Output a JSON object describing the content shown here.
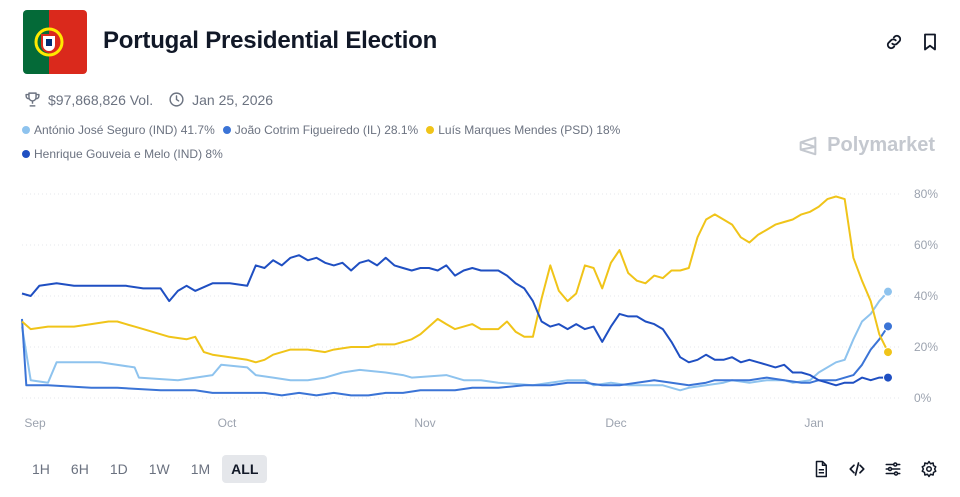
{
  "header": {
    "title": "Portugal Presidential Election",
    "volume": "$97,868,826 Vol.",
    "end_date": "Jan 25, 2026"
  },
  "brand": "Polymarket",
  "ranges": [
    {
      "label": "1H",
      "active": false
    },
    {
      "label": "6H",
      "active": false
    },
    {
      "label": "1D",
      "active": false
    },
    {
      "label": "1W",
      "active": false
    },
    {
      "label": "1M",
      "active": false
    },
    {
      "label": "ALL",
      "active": true
    }
  ],
  "icons": {
    "link": "link-icon",
    "bookmark": "bookmark-icon",
    "trophy": "trophy-icon",
    "clock": "clock-icon",
    "doc": "document-icon",
    "embed": "code-icon",
    "filters": "sliders-icon",
    "settings": "gear-icon"
  },
  "chart_data": {
    "type": "line",
    "x_ticks": [
      "Sep",
      "Oct",
      "Nov",
      "Dec",
      "Jan"
    ],
    "y_ticks": [
      "0%",
      "20%",
      "40%",
      "60%",
      "80%"
    ],
    "ylim": [
      0,
      80
    ],
    "grid": true,
    "legend_position": "top-left",
    "x_domain": [
      0,
      100
    ],
    "series": [
      {
        "name": "António José Seguro (IND)",
        "pct": "41.7%",
        "color": "#8ec3ee",
        "end_value": 41.7,
        "points": [
          [
            0,
            28
          ],
          [
            1,
            7
          ],
          [
            3,
            6
          ],
          [
            4,
            14
          ],
          [
            9,
            14
          ],
          [
            13,
            12
          ],
          [
            13.5,
            8
          ],
          [
            18,
            7
          ],
          [
            22,
            9
          ],
          [
            23,
            13
          ],
          [
            26,
            12
          ],
          [
            27,
            9
          ],
          [
            29,
            8
          ],
          [
            31,
            7
          ],
          [
            33,
            7
          ],
          [
            35,
            8
          ],
          [
            37,
            10
          ],
          [
            39,
            11
          ],
          [
            42,
            10
          ],
          [
            44,
            9
          ],
          [
            45,
            8
          ],
          [
            49,
            9
          ],
          [
            51,
            7
          ],
          [
            53,
            7
          ],
          [
            55,
            6
          ],
          [
            59,
            5
          ],
          [
            61,
            6
          ],
          [
            63,
            7
          ],
          [
            65,
            7
          ],
          [
            66,
            5
          ],
          [
            68,
            6
          ],
          [
            70,
            5
          ],
          [
            72,
            5
          ],
          [
            74,
            5
          ],
          [
            75,
            4
          ],
          [
            76,
            3
          ],
          [
            77,
            4
          ],
          [
            79,
            5
          ],
          [
            81,
            6
          ],
          [
            82,
            7
          ],
          [
            84,
            6
          ],
          [
            86,
            7
          ],
          [
            88,
            7
          ],
          [
            89,
            6
          ],
          [
            91,
            7
          ],
          [
            92,
            10
          ],
          [
            94,
            14
          ],
          [
            95,
            15
          ],
          [
            96,
            23
          ],
          [
            97,
            30
          ],
          [
            98,
            33
          ],
          [
            99,
            38
          ],
          [
            100,
            41.7
          ]
        ]
      },
      {
        "name": "João Cotrim Figueiredo (IL)",
        "pct": "28.1%",
        "color": "#3b74d6",
        "end_value": 28.1,
        "points": [
          [
            0,
            31
          ],
          [
            0.5,
            5
          ],
          [
            3,
            5
          ],
          [
            8,
            4
          ],
          [
            11,
            4
          ],
          [
            16,
            3
          ],
          [
            20,
            3
          ],
          [
            22,
            2
          ],
          [
            25,
            2
          ],
          [
            28,
            2
          ],
          [
            30,
            1
          ],
          [
            32,
            2
          ],
          [
            34,
            1
          ],
          [
            36,
            2
          ],
          [
            38,
            1
          ],
          [
            40,
            1
          ],
          [
            42,
            2
          ],
          [
            44,
            2
          ],
          [
            46,
            3
          ],
          [
            48,
            3
          ],
          [
            50,
            3
          ],
          [
            52,
            4
          ],
          [
            55,
            4
          ],
          [
            58,
            5
          ],
          [
            61,
            5
          ],
          [
            63,
            6
          ],
          [
            65,
            6
          ],
          [
            67,
            5
          ],
          [
            69,
            5
          ],
          [
            71,
            6
          ],
          [
            73,
            7
          ],
          [
            75,
            6
          ],
          [
            77,
            5
          ],
          [
            79,
            6
          ],
          [
            80,
            7
          ],
          [
            82,
            7
          ],
          [
            84,
            7
          ],
          [
            86,
            8
          ],
          [
            88,
            7
          ],
          [
            90,
            6
          ],
          [
            91,
            6
          ],
          [
            92,
            7
          ],
          [
            94,
            7
          ],
          [
            96,
            9
          ],
          [
            97,
            13
          ],
          [
            98,
            19
          ],
          [
            99,
            23
          ],
          [
            100,
            28.1
          ]
        ]
      },
      {
        "name": "Luís Marques Mendes (PSD)",
        "pct": "18%",
        "color": "#f0c419",
        "end_value": 18,
        "points": [
          [
            0,
            30
          ],
          [
            1,
            27
          ],
          [
            3,
            28
          ],
          [
            6,
            28
          ],
          [
            8,
            29
          ],
          [
            10,
            30
          ],
          [
            11,
            30
          ],
          [
            12,
            29
          ],
          [
            13,
            28
          ],
          [
            14,
            27
          ],
          [
            17,
            24
          ],
          [
            19,
            23
          ],
          [
            20,
            24
          ],
          [
            21,
            18
          ],
          [
            22,
            17
          ],
          [
            24,
            16
          ],
          [
            26,
            15
          ],
          [
            27,
            14
          ],
          [
            28,
            15
          ],
          [
            29,
            17
          ],
          [
            31,
            19
          ],
          [
            33,
            19
          ],
          [
            35,
            18
          ],
          [
            36,
            19
          ],
          [
            38,
            20
          ],
          [
            40,
            20
          ],
          [
            41,
            21
          ],
          [
            43,
            21
          ],
          [
            45,
            23
          ],
          [
            46,
            25
          ],
          [
            47,
            28
          ],
          [
            48,
            31
          ],
          [
            49,
            29
          ],
          [
            50,
            27
          ],
          [
            51,
            28
          ],
          [
            52,
            29
          ],
          [
            53,
            27
          ],
          [
            54,
            27
          ],
          [
            55,
            27
          ],
          [
            56,
            30
          ],
          [
            57,
            26
          ],
          [
            58,
            24
          ],
          [
            59,
            24
          ],
          [
            60,
            39
          ],
          [
            61,
            52
          ],
          [
            62,
            42
          ],
          [
            63,
            38
          ],
          [
            64,
            41
          ],
          [
            65,
            52
          ],
          [
            66,
            51
          ],
          [
            67,
            43
          ],
          [
            68,
            53
          ],
          [
            69,
            58
          ],
          [
            70,
            49
          ],
          [
            71,
            46
          ],
          [
            72,
            45
          ],
          [
            73,
            48
          ],
          [
            74,
            47
          ],
          [
            75,
            50
          ],
          [
            76,
            50
          ],
          [
            77,
            51
          ],
          [
            78,
            63
          ],
          [
            79,
            70
          ],
          [
            80,
            72
          ],
          [
            81,
            70
          ],
          [
            82,
            68
          ],
          [
            83,
            63
          ],
          [
            84,
            61
          ],
          [
            85,
            64
          ],
          [
            86,
            66
          ],
          [
            87,
            68
          ],
          [
            88,
            69
          ],
          [
            89,
            70
          ],
          [
            90,
            72
          ],
          [
            91,
            73
          ],
          [
            92,
            75
          ],
          [
            93,
            78
          ],
          [
            94,
            79
          ],
          [
            95,
            78
          ],
          [
            96,
            55
          ],
          [
            97,
            46
          ],
          [
            98,
            38
          ],
          [
            99,
            25
          ],
          [
            100,
            18
          ]
        ]
      },
      {
        "name": "Henrique Gouveia e Melo (IND)",
        "pct": "8%",
        "color": "#1f4fc2",
        "end_value": 8,
        "points": [
          [
            0,
            41
          ],
          [
            1,
            40
          ],
          [
            2,
            44
          ],
          [
            4,
            45
          ],
          [
            6,
            44
          ],
          [
            8,
            44
          ],
          [
            10,
            44
          ],
          [
            12,
            44
          ],
          [
            14,
            43
          ],
          [
            16,
            43
          ],
          [
            17,
            38
          ],
          [
            18,
            42
          ],
          [
            19,
            44
          ],
          [
            20,
            42
          ],
          [
            22,
            45
          ],
          [
            24,
            45
          ],
          [
            26,
            44
          ],
          [
            27,
            52
          ],
          [
            28,
            51
          ],
          [
            29,
            54
          ],
          [
            30,
            52
          ],
          [
            31,
            55
          ],
          [
            32,
            56
          ],
          [
            33,
            54
          ],
          [
            34,
            55
          ],
          [
            35,
            53
          ],
          [
            36,
            52
          ],
          [
            37,
            53
          ],
          [
            38,
            50
          ],
          [
            39,
            53
          ],
          [
            40,
            54
          ],
          [
            41,
            52
          ],
          [
            42,
            55
          ],
          [
            43,
            52
          ],
          [
            44,
            51
          ],
          [
            45,
            50
          ],
          [
            46,
            51
          ],
          [
            47,
            51
          ],
          [
            48,
            50
          ],
          [
            49,
            52
          ],
          [
            50,
            48
          ],
          [
            51,
            50
          ],
          [
            52,
            51
          ],
          [
            53,
            50
          ],
          [
            54,
            50
          ],
          [
            55,
            50
          ],
          [
            56,
            48
          ],
          [
            57,
            45
          ],
          [
            58,
            43
          ],
          [
            59,
            38
          ],
          [
            60,
            30
          ],
          [
            61,
            28
          ],
          [
            62,
            29
          ],
          [
            63,
            27
          ],
          [
            64,
            29
          ],
          [
            65,
            27
          ],
          [
            66,
            28
          ],
          [
            67,
            22
          ],
          [
            68,
            28
          ],
          [
            69,
            33
          ],
          [
            70,
            32
          ],
          [
            71,
            32
          ],
          [
            72,
            30
          ],
          [
            73,
            29
          ],
          [
            74,
            27
          ],
          [
            75,
            22
          ],
          [
            76,
            16
          ],
          [
            77,
            14
          ],
          [
            78,
            15
          ],
          [
            79,
            17
          ],
          [
            80,
            15
          ],
          [
            81,
            15
          ],
          [
            82,
            16
          ],
          [
            83,
            14
          ],
          [
            84,
            15
          ],
          [
            85,
            14
          ],
          [
            86,
            13
          ],
          [
            87,
            12
          ],
          [
            88,
            13
          ],
          [
            89,
            10
          ],
          [
            90,
            10
          ],
          [
            91,
            9
          ],
          [
            92,
            7
          ],
          [
            93,
            6
          ],
          [
            94,
            5
          ],
          [
            95,
            6
          ],
          [
            96,
            6
          ],
          [
            97,
            8
          ],
          [
            98,
            7
          ],
          [
            99,
            8
          ],
          [
            100,
            8
          ]
        ]
      }
    ]
  }
}
